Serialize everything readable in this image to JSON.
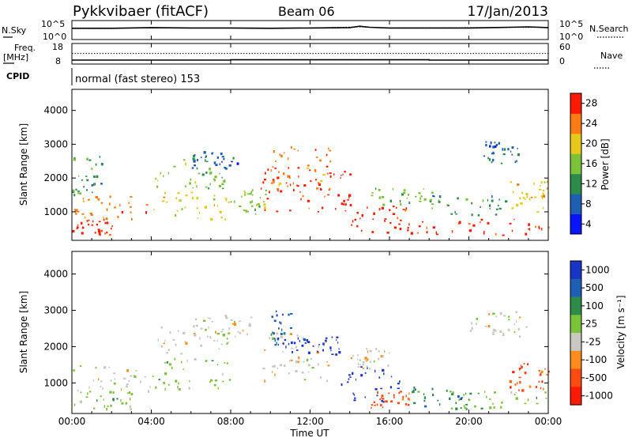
{
  "header": {
    "station": "Pykkvibaer (fitACF)",
    "beam": "Beam 06",
    "date": "17/Jan/2013"
  },
  "chart_data": [
    {
      "type": "line",
      "panel": "noise",
      "left_label": "N.Sky",
      "right_label": "N.Search",
      "left_ticks": [
        "10^5",
        "10^0"
      ],
      "right_ticks": [
        "10^5",
        "10^0"
      ],
      "series": [
        {
          "name": "N.Sky",
          "style": "solid",
          "x": [
            0,
            2,
            4,
            6,
            8,
            10,
            12,
            14,
            14.5,
            15,
            16,
            18,
            20,
            22,
            23,
            24
          ],
          "y": [
            3.0,
            3.0,
            3.2,
            3.1,
            3.1,
            3.0,
            3.1,
            3.2,
            3.6,
            3.3,
            3.1,
            3.1,
            3.1,
            3.3,
            3.4,
            3.2
          ]
        },
        {
          "name": "N.Search",
          "style": "dotted",
          "x": [
            0,
            4,
            8,
            12,
            14.5,
            16,
            20,
            24
          ],
          "y": [
            3.1,
            3.1,
            3.1,
            3.1,
            3.4,
            3.1,
            3.2,
            3.3
          ]
        }
      ]
    },
    {
      "type": "line",
      "panel": "frequency",
      "left_label": "Freq.",
      "left_unit": "[MHz]",
      "right_label": "Nave",
      "left_ticks": [
        "18",
        "8"
      ],
      "right_ticks": [
        "60",
        "0"
      ],
      "series": [
        {
          "name": "Freq.",
          "style": "solid",
          "x": [
            0,
            8,
            8,
            18,
            18,
            24
          ],
          "y": [
            10,
            10,
            11,
            11,
            10,
            10
          ]
        },
        {
          "name": "Nave",
          "style": "dotted",
          "x": [
            0,
            24
          ],
          "y": [
            31,
            31
          ]
        }
      ]
    },
    {
      "type": "text",
      "panel": "cpid",
      "label": "CPID",
      "value": "normal (fast stereo) 153"
    },
    {
      "type": "heatmap",
      "panel": "power",
      "ylabel": "Slant Range [km]",
      "yticks": [
        1000,
        2000,
        3000,
        4000
      ],
      "ylim": [
        180,
        4600
      ],
      "xlim": [
        0,
        24
      ],
      "colorbar": {
        "label": "Power [dB]",
        "ticks": [
          "4",
          "8",
          "12",
          "16",
          "20",
          "24",
          "28"
        ],
        "colors": [
          "#0a14ff",
          "#1f5fb3",
          "#2e8c4a",
          "#7bc23a",
          "#e6c81a",
          "#ff7a10",
          "#ff1a00"
        ]
      },
      "regions": [
        {
          "t0": 0,
          "t1": 2,
          "r0": 300,
          "r1": 800,
          "c": 6
        },
        {
          "t0": 0,
          "t1": 4,
          "r0": 800,
          "r1": 1500,
          "c": 5
        },
        {
          "t0": 0,
          "t1": 1.5,
          "r0": 1500,
          "r1": 2700,
          "c": 2
        },
        {
          "t0": 4,
          "t1": 8,
          "r0": 800,
          "r1": 1600,
          "c": 4
        },
        {
          "t0": 4,
          "t1": 8,
          "r0": 1700,
          "r1": 2600,
          "c": 3
        },
        {
          "t0": 6,
          "t1": 8.5,
          "r0": 2300,
          "r1": 2800,
          "c": 1
        },
        {
          "t0": 8,
          "t1": 9.8,
          "r0": 900,
          "r1": 1700,
          "c": 3
        },
        {
          "t0": 9.5,
          "t1": 14,
          "r0": 1000,
          "r1": 2400,
          "c": 6
        },
        {
          "t0": 10,
          "t1": 13,
          "r0": 1700,
          "r1": 3000,
          "c": 5
        },
        {
          "t0": 14,
          "t1": 17,
          "r0": 400,
          "r1": 1200,
          "c": 6
        },
        {
          "t0": 15,
          "t1": 18.5,
          "r0": 1200,
          "r1": 1800,
          "c": 3
        },
        {
          "t0": 16.5,
          "t1": 24,
          "r0": 300,
          "r1": 800,
          "c": 6
        },
        {
          "t0": 18,
          "t1": 22,
          "r0": 900,
          "r1": 1500,
          "c": 2
        },
        {
          "t0": 20.5,
          "t1": 22.5,
          "r0": 2400,
          "r1": 3100,
          "c": 1
        },
        {
          "t0": 22,
          "t1": 24,
          "r0": 1000,
          "r1": 2000,
          "c": 4
        }
      ]
    },
    {
      "type": "heatmap",
      "panel": "velocity",
      "ylabel": "Slant Range [km]",
      "yticks": [
        1000,
        2000,
        3000,
        4000
      ],
      "ylim": [
        180,
        4600
      ],
      "xlim": [
        0,
        24
      ],
      "colorbar": {
        "label": "Velocity [m s⁻¹]",
        "ticks": [
          "1000",
          "500",
          "100",
          "25",
          "-25",
          "-100",
          "-500",
          "-1000"
        ],
        "colors": [
          "#1a34c8",
          "#1f5fb3",
          "#2e8c4a",
          "#7bc23a",
          "#c8c8c0",
          "#ff8c1a",
          "#ff4a10",
          "#ff1a00"
        ]
      },
      "regions": [
        {
          "t0": 0,
          "t1": 3,
          "r0": 300,
          "r1": 800,
          "c": 3
        },
        {
          "t0": 0,
          "t1": 4,
          "r0": 800,
          "r1": 1500,
          "c": 4
        },
        {
          "t0": 4,
          "t1": 8,
          "r0": 800,
          "r1": 1700,
          "c": 3
        },
        {
          "t0": 4,
          "t1": 8,
          "r0": 1800,
          "r1": 2600,
          "c": 4
        },
        {
          "t0": 6,
          "t1": 9,
          "r0": 2300,
          "r1": 2900,
          "c": 4
        },
        {
          "t0": 9.5,
          "t1": 13,
          "r0": 1000,
          "r1": 2400,
          "c": 4
        },
        {
          "t0": 10,
          "t1": 11,
          "r0": 2000,
          "r1": 3000,
          "c": 1
        },
        {
          "t0": 11,
          "t1": 13.5,
          "r0": 1800,
          "r1": 2300,
          "c": 0
        },
        {
          "t0": 13.5,
          "t1": 16.5,
          "r0": 500,
          "r1": 1500,
          "c": 0
        },
        {
          "t0": 14,
          "t1": 16,
          "r0": 1400,
          "r1": 2000,
          "c": 4
        },
        {
          "t0": 15,
          "t1": 17,
          "r0": 300,
          "r1": 800,
          "c": 6
        },
        {
          "t0": 17,
          "t1": 20,
          "r0": 300,
          "r1": 900,
          "c": 2
        },
        {
          "t0": 19,
          "t1": 24,
          "r0": 300,
          "r1": 800,
          "c": 3
        },
        {
          "t0": 20,
          "t1": 23,
          "r0": 2300,
          "r1": 3000,
          "c": 4
        },
        {
          "t0": 22,
          "t1": 24,
          "r0": 800,
          "r1": 1600,
          "c": 6
        }
      ]
    }
  ],
  "xaxis": {
    "ticks": [
      "00:00",
      "04:00",
      "08:00",
      "12:00",
      "16:00",
      "20:00",
      "00:00"
    ],
    "label": "Time UT"
  }
}
